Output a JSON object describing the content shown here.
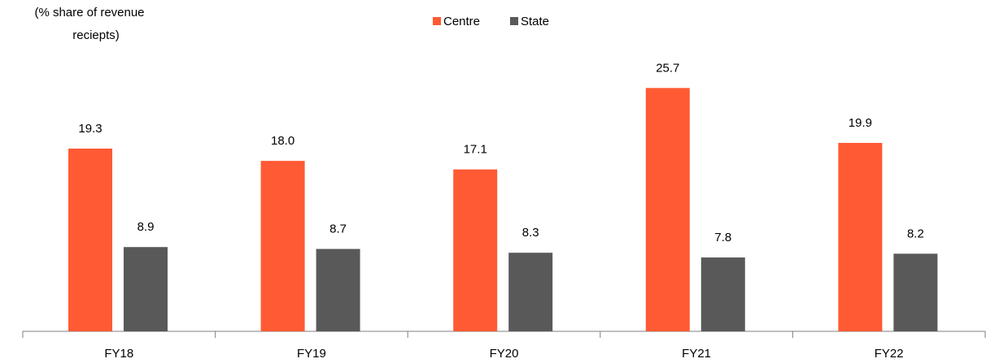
{
  "chart_data": {
    "type": "bar",
    "y_label": [
      "(% share of revenue",
      "reciepts)"
    ],
    "categories": [
      "FY18",
      "FY19",
      "FY20",
      "FY21",
      "FY22"
    ],
    "series": [
      {
        "name": "Centre",
        "color": "#ff5a33",
        "values": [
          19.3,
          18.0,
          17.1,
          25.7,
          19.9
        ],
        "value_labels": [
          "19.3",
          "18.0",
          "17.1",
          "25.7",
          "19.9"
        ]
      },
      {
        "name": "State",
        "color": "#595959",
        "values": [
          8.9,
          8.7,
          8.3,
          7.8,
          8.2
        ],
        "value_labels": [
          "8.9",
          "8.7",
          "8.3",
          "7.8",
          "8.2"
        ]
      }
    ],
    "legend": "top"
  }
}
